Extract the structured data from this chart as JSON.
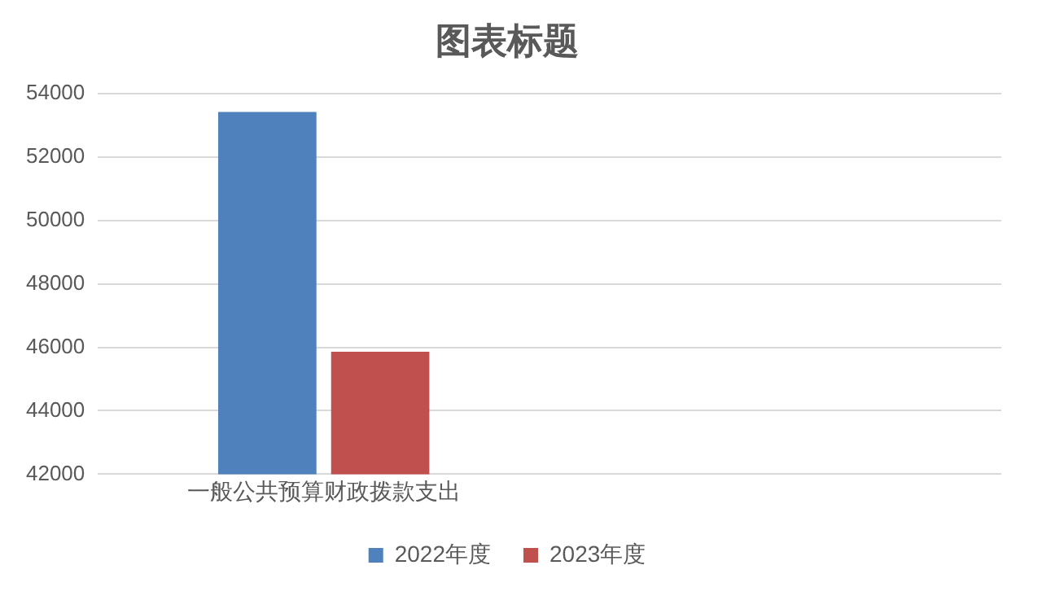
{
  "chart_data": {
    "type": "bar",
    "title": "图表标题",
    "categories": [
      "一般公共预算财政拨款支出",
      null
    ],
    "series": [
      {
        "name": "2022年度",
        "color": "#4f81bd",
        "values": [
          53420,
          null
        ]
      },
      {
        "name": "2023年度",
        "color": "#c0504d",
        "values": [
          45860,
          null
        ]
      }
    ],
    "ylim": [
      42000,
      54000
    ],
    "yticks": [
      42000,
      44000,
      46000,
      48000,
      50000,
      52000,
      54000
    ],
    "grid": "y",
    "legend": "bottom"
  }
}
